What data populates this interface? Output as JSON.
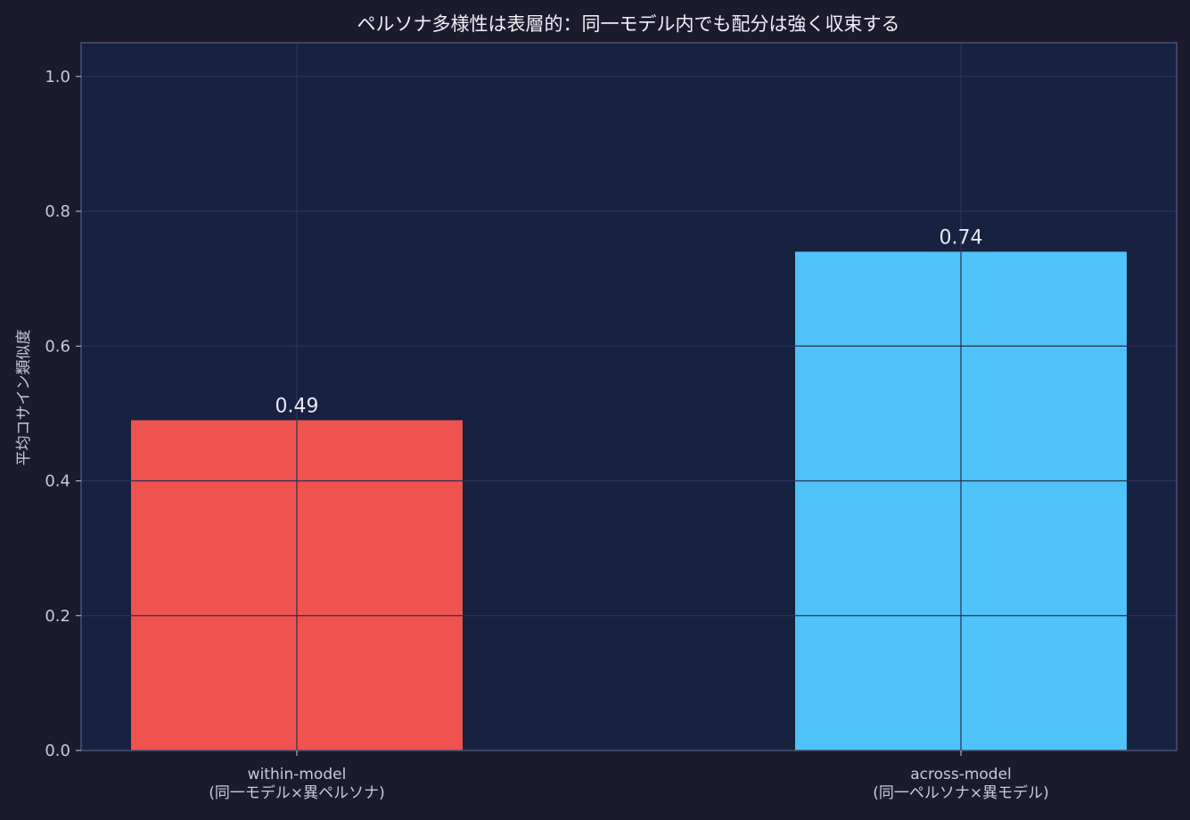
{
  "colors": {
    "background": "#1c1b2e",
    "plot_background": "#172140",
    "plot_border": "#4a5070",
    "grid": "#2c3658",
    "bar_within": "#ef5350",
    "bar_across": "#4fc3f7",
    "overlay_grid": "#2b3050"
  },
  "chart_data": {
    "type": "bar",
    "title": "ペルソナ多様性は表層的：同一モデル内でも配分は強く収束する",
    "xlabel": "",
    "ylabel": "平均コサイン類似度",
    "ylim": [
      0,
      1.05
    ],
    "yticks": [
      0.0,
      0.2,
      0.4,
      0.6,
      0.8,
      1.0
    ],
    "ytick_labels": [
      "0.0",
      "0.2",
      "0.4",
      "0.6",
      "0.8",
      "1.0"
    ],
    "grid": true,
    "categories": [
      {
        "line1": "within-model",
        "line2": "(同一モデル×異ペルソナ)"
      },
      {
        "line1": "across-model",
        "line2": "(同一ペルソナ×異モデル)"
      }
    ],
    "values": [
      0.49,
      0.74
    ],
    "value_labels": [
      "0.49",
      "0.74"
    ]
  }
}
